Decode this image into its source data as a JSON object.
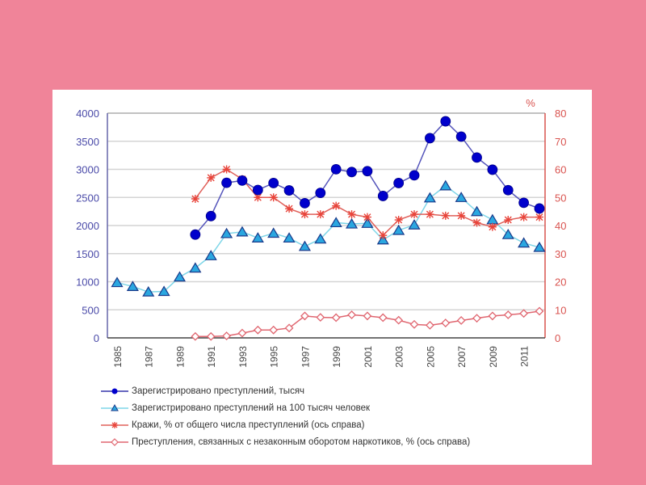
{
  "chart_data": {
    "type": "line",
    "title": "",
    "xlabel": "",
    "ylabel": "",
    "y2label": "%",
    "ylim": [
      0,
      4000
    ],
    "y2lim": [
      0,
      80
    ],
    "yticks": [
      "0",
      "500",
      "1000",
      "1500",
      "2000",
      "2500",
      "3000",
      "3500",
      "4000"
    ],
    "y2ticks": [
      "0",
      "10",
      "20",
      "30",
      "40",
      "50",
      "60",
      "70",
      "80"
    ],
    "x": [
      1985,
      1986,
      1987,
      1988,
      1989,
      1990,
      1991,
      1992,
      1993,
      1994,
      1995,
      1996,
      1997,
      1998,
      1999,
      2000,
      2001,
      2002,
      2003,
      2004,
      2005,
      2006,
      2007,
      2008,
      2009,
      2010,
      2011,
      2012
    ],
    "xticks": [
      "1985",
      "1987",
      "1989",
      "1991",
      "1993",
      "1995",
      "1997",
      "1999",
      "2001",
      "2003",
      "2005",
      "2007",
      "2009",
      "2011"
    ],
    "grid": true,
    "legend_position": "bottom",
    "series": [
      {
        "name": "Зарегистрировано преступлений, тысяч",
        "axis": "left",
        "color": "#0000cc",
        "line_color": "#5555bb",
        "marker": "circle",
        "values": [
          null,
          null,
          null,
          null,
          null,
          1839,
          2168,
          2761,
          2800,
          2633,
          2756,
          2625,
          2397,
          2581,
          3002,
          2952,
          2968,
          2526,
          2756,
          2894,
          3555,
          3855,
          3583,
          3210,
          2994,
          2629,
          2405,
          2303
        ]
      },
      {
        "name": "Зарегистрировано преступлений на 100 тысяч человек",
        "axis": "left",
        "color": "#2aa7e0",
        "line_color": "#7fd6e8",
        "marker": "triangle",
        "values": [
          985,
          915,
          818,
          827,
          1084,
          1243,
          1463,
          1857,
          1887,
          1779,
          1863,
          1778,
          1629,
          1760,
          2051,
          2028,
          2039,
          1745,
          1914,
          2011,
          2492,
          2707,
          2499,
          2248,
          2103,
          1839,
          1689,
          1611
        ]
      },
      {
        "name": "Кражи, % от общего числа преступлений (ось справа)",
        "axis": "right",
        "color": "#e8443a",
        "line_color": "#e0605a",
        "marker": "star",
        "values": [
          null,
          null,
          null,
          null,
          null,
          49.5,
          57,
          60,
          56.5,
          50,
          50,
          46,
          44,
          44,
          47,
          44,
          43,
          36.5,
          42,
          44,
          44,
          43.5,
          43.5,
          41,
          39.5,
          42,
          43,
          43
        ]
      },
      {
        "name": "Преступления, связанных с незаконным оборотом наркотиков, % (ось справа)",
        "axis": "right",
        "color": "#e06670",
        "line_color": "#e06670",
        "marker": "diamond",
        "values": [
          null,
          null,
          null,
          null,
          null,
          0.5,
          0.5,
          0.7,
          1.7,
          2.8,
          2.8,
          3.5,
          7.8,
          7.3,
          7.2,
          8.2,
          7.8,
          7.2,
          6.3,
          4.8,
          4.5,
          5.3,
          6.2,
          7.0,
          7.8,
          8.2,
          8.7,
          9.5
        ]
      }
    ]
  },
  "colors": {
    "background": "#f08499",
    "left_axis_text": "#4a4aa8",
    "right_axis_text": "#d9534f"
  }
}
